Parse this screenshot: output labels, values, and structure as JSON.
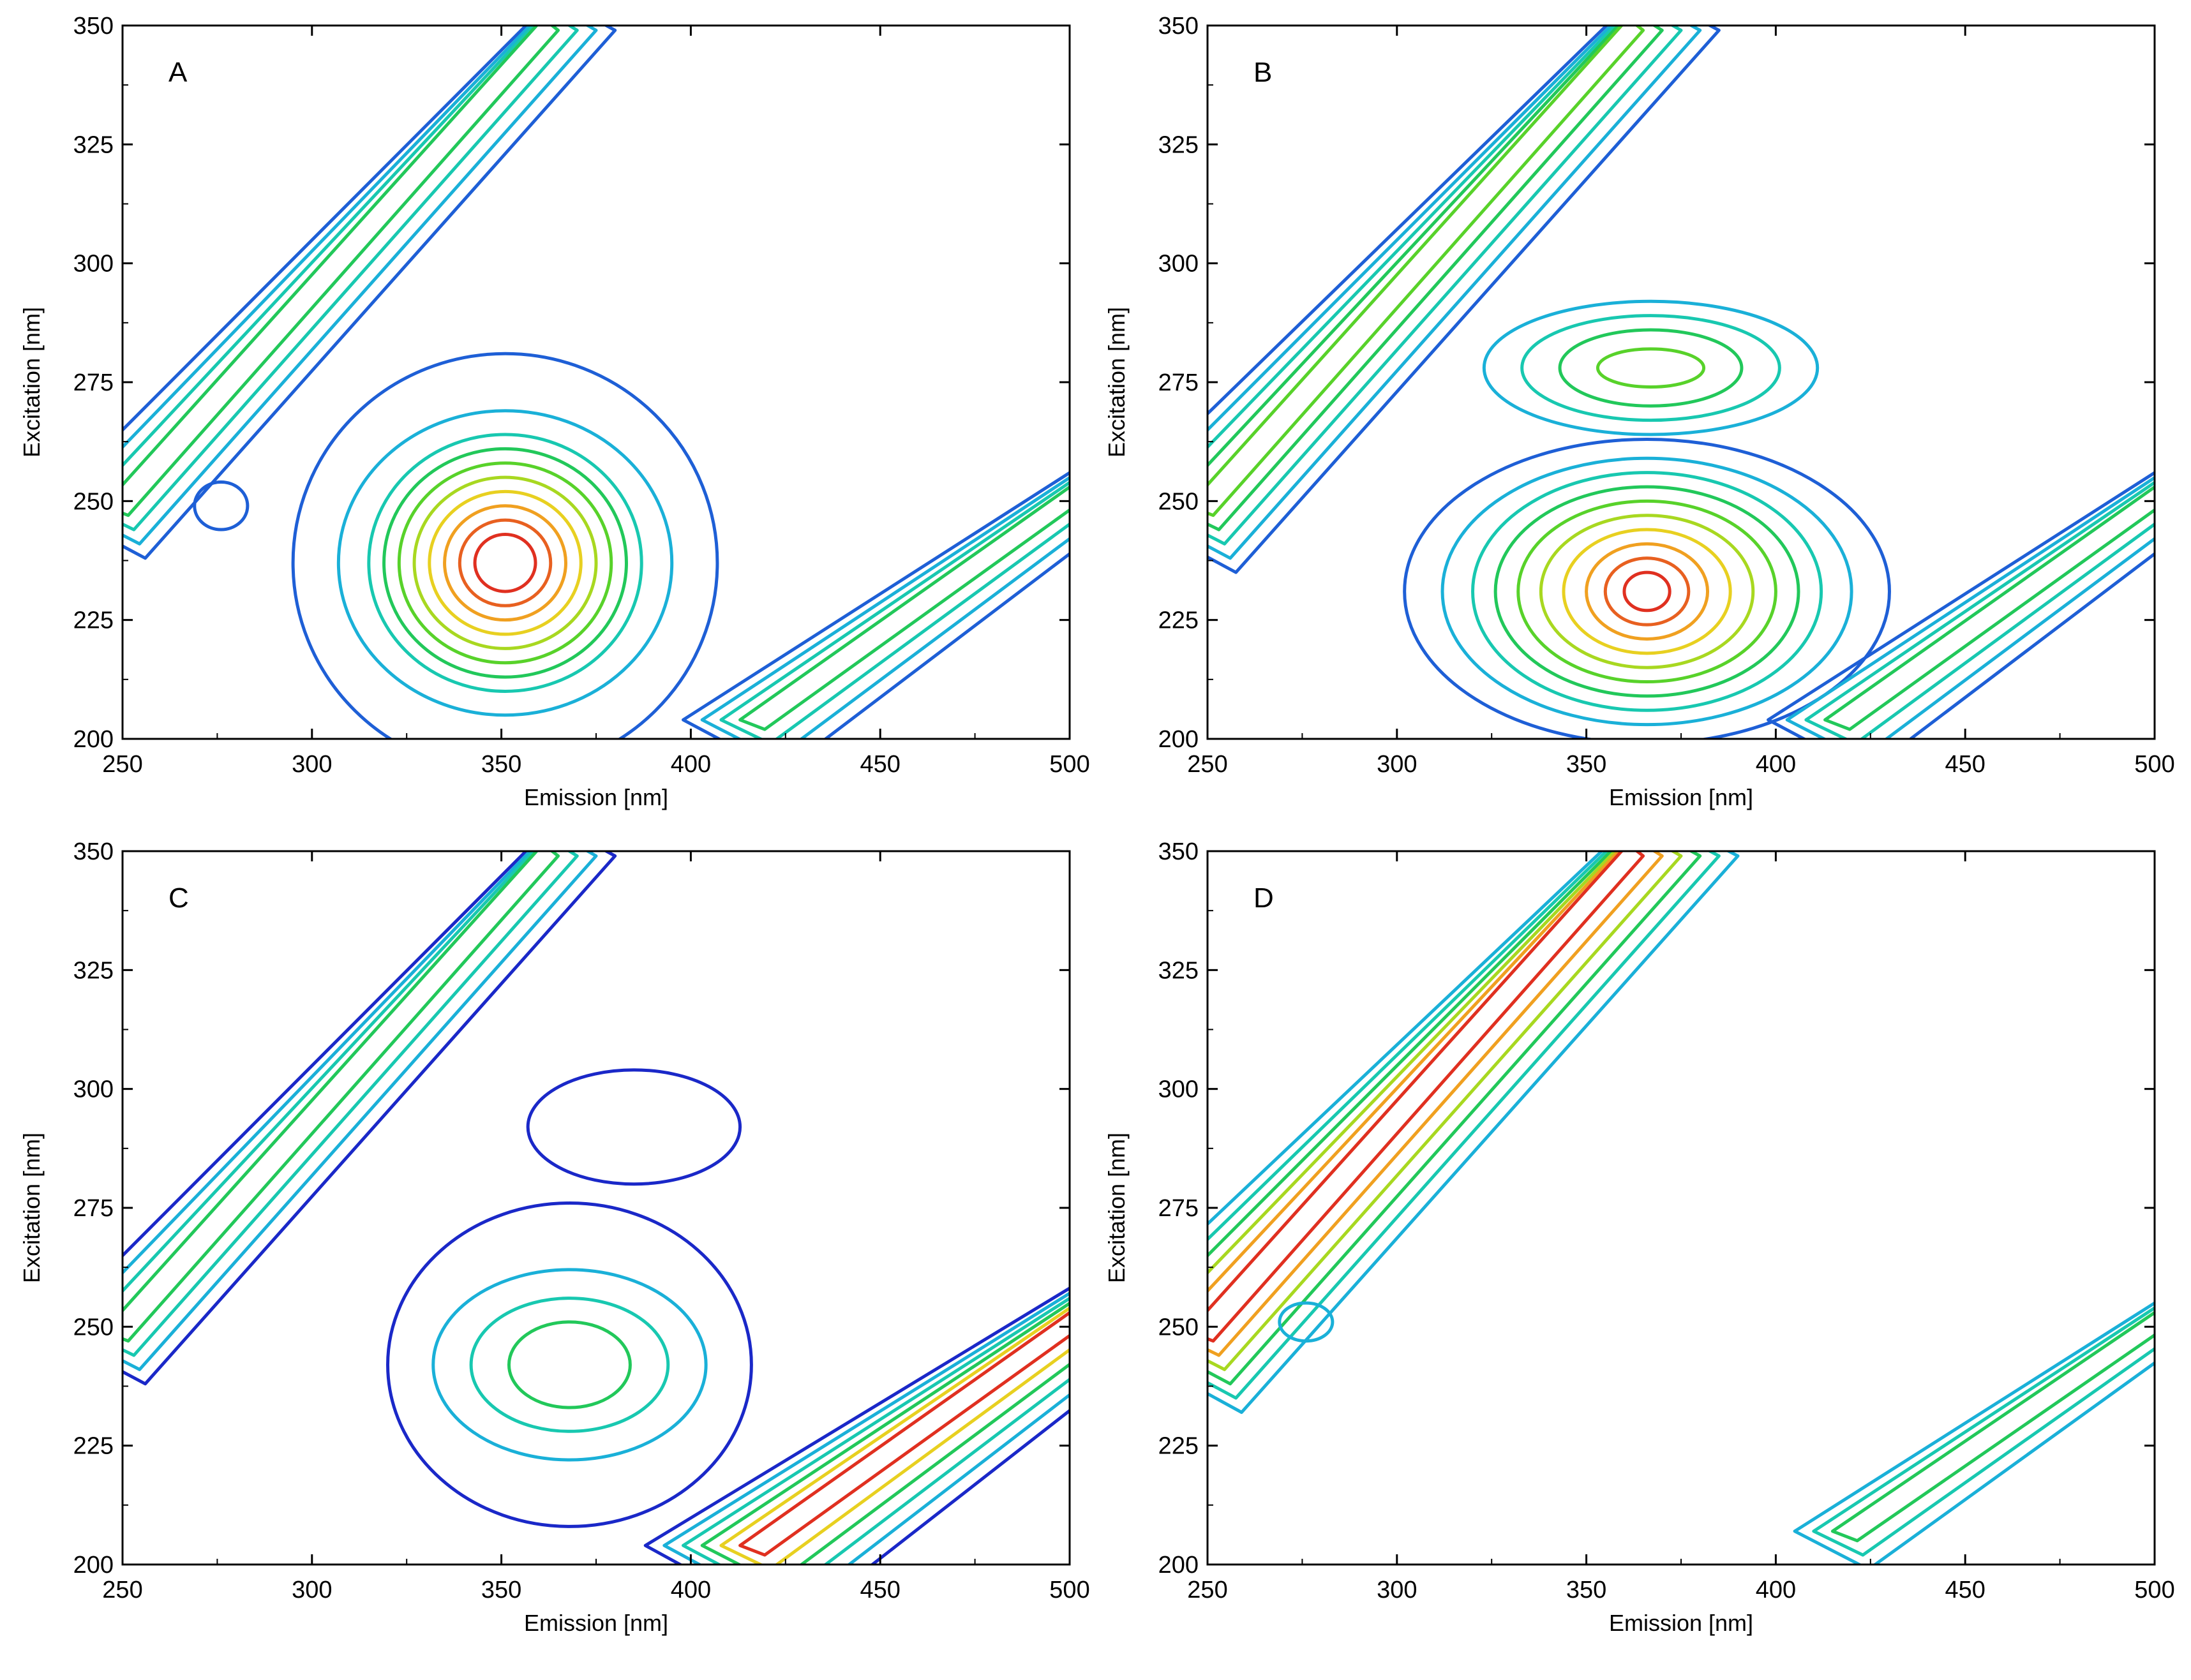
{
  "chart_data": [
    {
      "type": "contour",
      "panel": "A",
      "xlabel": "Emission [nm]",
      "ylabel": "Excitation [nm]",
      "xlim": [
        250,
        500
      ],
      "ylim": [
        200,
        350
      ],
      "xticks": [
        250,
        300,
        350,
        400,
        450,
        500
      ],
      "yticks": [
        200,
        225,
        250,
        275,
        300,
        325,
        350
      ],
      "features": [
        {
          "kind": "peak",
          "name": "main-peak",
          "center": [
            351,
            237
          ],
          "levels": [
            "#1e5fd6",
            "#1ab0d8",
            "#18c8b0",
            "#22c85a",
            "#58d22a",
            "#a8d820",
            "#e8d020",
            "#f0a020",
            "#e86020",
            "#e03020"
          ],
          "radii_x": [
            56,
            44,
            36,
            32,
            28,
            24,
            20,
            16,
            12,
            8
          ],
          "radii_y": [
            44,
            32,
            27,
            24,
            21,
            18,
            15,
            12,
            9,
            6
          ]
        },
        {
          "kind": "ridge",
          "name": "rayleigh-scatter",
          "from": [
            250,
            250
          ],
          "to": [
            360,
            350
          ],
          "levels": [
            "#1e5fd6",
            "#1ab0d8",
            "#18c8b0",
            "#22c85a"
          ]
        },
        {
          "kind": "ridge",
          "name": "second-order-scatter",
          "from": [
            418,
            205
          ],
          "to": [
            500,
            252
          ],
          "levels": [
            "#1e5fd6",
            "#1ab0d8",
            "#18c8b0",
            "#22c85a"
          ]
        },
        {
          "kind": "spot",
          "name": "small-island",
          "center": [
            276,
            249
          ],
          "levels": [
            "#1e5fd6"
          ],
          "radii_x": [
            7
          ],
          "radii_y": [
            5
          ]
        }
      ]
    },
    {
      "type": "contour",
      "panel": "B",
      "xlabel": "Emission [nm]",
      "ylabel": "Excitation [nm]",
      "xlim": [
        250,
        500
      ],
      "ylim": [
        200,
        350
      ],
      "xticks": [
        250,
        300,
        350,
        400,
        450,
        500
      ],
      "yticks": [
        200,
        225,
        250,
        275,
        300,
        325,
        350
      ],
      "features": [
        {
          "kind": "peak",
          "name": "tyrosine-peak",
          "center": [
            366,
            231
          ],
          "levels": [
            "#1e5fd6",
            "#1ab0d8",
            "#18c8b0",
            "#22c85a",
            "#58d22a",
            "#a8d820",
            "#e8d020",
            "#f0a020",
            "#e86020",
            "#e03020"
          ],
          "radii_x": [
            64,
            54,
            46,
            40,
            34,
            28,
            22,
            16,
            11,
            6
          ],
          "radii_y": [
            32,
            28,
            25,
            22,
            19,
            16,
            13,
            10,
            7,
            4
          ]
        },
        {
          "kind": "peak",
          "name": "tryptophan-peak",
          "center": [
            367,
            278
          ],
          "levels": [
            "#1ab0d8",
            "#18c8b0",
            "#22c85a",
            "#58d22a"
          ],
          "radii_x": [
            44,
            34,
            24,
            14
          ],
          "radii_y": [
            14,
            11,
            8,
            4
          ]
        },
        {
          "kind": "ridge",
          "name": "rayleigh-scatter",
          "from": [
            250,
            250
          ],
          "to": [
            360,
            350
          ],
          "levels": [
            "#1e5fd6",
            "#1ab0d8",
            "#18c8b0",
            "#22c85a",
            "#58d22a"
          ]
        },
        {
          "kind": "ridge",
          "name": "second-order-scatter",
          "from": [
            418,
            205
          ],
          "to": [
            500,
            252
          ],
          "levels": [
            "#1e5fd6",
            "#1ab0d8",
            "#18c8b0",
            "#22c85a"
          ]
        }
      ]
    },
    {
      "type": "contour",
      "panel": "C",
      "xlabel": "Emission [nm]",
      "ylabel": "Excitation [nm]",
      "xlim": [
        250,
        500
      ],
      "ylim": [
        200,
        350
      ],
      "xticks": [
        250,
        300,
        350,
        400,
        450,
        500
      ],
      "yticks": [
        200,
        225,
        250,
        275,
        300,
        325,
        350
      ],
      "features": [
        {
          "kind": "peak",
          "name": "main-peak",
          "center": [
            368,
            242
          ],
          "levels": [
            "#1a28c8",
            "#1ab0d8",
            "#18c8b0",
            "#22c85a"
          ],
          "radii_x": [
            48,
            36,
            26,
            16
          ],
          "radii_y": [
            34,
            20,
            14,
            9
          ]
        },
        {
          "kind": "spot",
          "name": "upper-loop",
          "center": [
            385,
            292
          ],
          "levels": [
            "#1a28c8"
          ],
          "radii_x": [
            28
          ],
          "radii_y": [
            12
          ]
        },
        {
          "kind": "ridge",
          "name": "rayleigh-scatter",
          "from": [
            250,
            250
          ],
          "to": [
            360,
            350
          ],
          "levels": [
            "#1a28c8",
            "#1ab0d8",
            "#18c8b0",
            "#22c85a"
          ]
        },
        {
          "kind": "ridge",
          "name": "second-order-scatter",
          "from": [
            418,
            205
          ],
          "to": [
            500,
            252
          ],
          "levels": [
            "#1a28c8",
            "#1ab0d8",
            "#18c8b0",
            "#22c85a",
            "#e8d020",
            "#e03020"
          ]
        }
      ]
    },
    {
      "type": "contour",
      "panel": "D",
      "xlabel": "Emission [nm]",
      "ylabel": "Excitation [nm]",
      "xlim": [
        250,
        500
      ],
      "ylim": [
        200,
        350
      ],
      "xticks": [
        250,
        300,
        350,
        400,
        450,
        500
      ],
      "yticks": [
        200,
        225,
        250,
        275,
        300,
        325,
        350
      ],
      "features": [
        {
          "kind": "ridge",
          "name": "rayleigh-scatter",
          "from": [
            250,
            250
          ],
          "to": [
            360,
            350
          ],
          "levels": [
            "#1ab0d8",
            "#18c8b0",
            "#22c85a",
            "#a8d820",
            "#f0a020",
            "#e03020"
          ]
        },
        {
          "kind": "ridge",
          "name": "second-order-scatter",
          "from": [
            420,
            208
          ],
          "to": [
            500,
            252
          ],
          "levels": [
            "#1ab0d8",
            "#18c8b0",
            "#22c85a"
          ]
        },
        {
          "kind": "spot",
          "name": "small-island",
          "center": [
            276,
            251
          ],
          "levels": [
            "#1ab0d8"
          ],
          "radii_x": [
            7
          ],
          "radii_y": [
            4
          ]
        }
      ]
    }
  ]
}
